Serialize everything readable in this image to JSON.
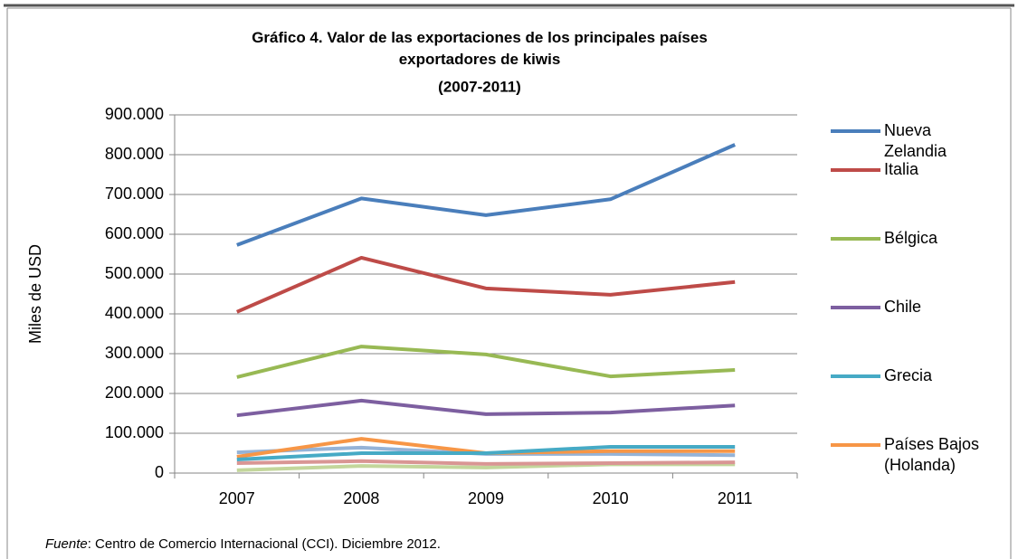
{
  "chart_data": {
    "type": "line",
    "title": "Gráfico 4. Valor de las exportaciones de los principales países exportadores de kiwis",
    "subtitle": "(2007-2011)",
    "y_label": "Miles de USD",
    "categories": [
      "2007",
      "2008",
      "2009",
      "2010",
      "2011"
    ],
    "series": [
      {
        "name": "Nueva Zelandia",
        "color": "#4a7ebb",
        "values": [
          573000,
          690000,
          648000,
          688000,
          825000
        ]
      },
      {
        "name": "Italia",
        "color": "#be4b48",
        "values": [
          405000,
          541000,
          464000,
          448000,
          480000
        ]
      },
      {
        "name": "Bélgica",
        "color": "#98b954",
        "values": [
          241000,
          318000,
          298000,
          243000,
          259000
        ]
      },
      {
        "name": "Chile",
        "color": "#7d5fa0",
        "values": [
          145000,
          182000,
          148000,
          152000,
          170000
        ]
      },
      {
        "name": "Grecia",
        "color": "#46aac5",
        "values": [
          34000,
          50000,
          50000,
          66000,
          66000
        ]
      },
      {
        "name": "Países Bajos (Holanda)",
        "color": "#f79646",
        "values": [
          41000,
          86000,
          50000,
          55000,
          55000
        ]
      },
      {
        "color": "#95b3d7",
        "values": [
          52000,
          64000,
          48000,
          48000,
          45000
        ]
      },
      {
        "color": "#d99694",
        "values": [
          25000,
          30000,
          23000,
          25000,
          27000
        ]
      },
      {
        "color": "#c3d69b",
        "values": [
          7000,
          18000,
          14000,
          22000,
          22000
        ]
      }
    ],
    "ylim": [
      0,
      900000
    ],
    "yticks": [
      0,
      {
        "value": 100000,
        "label": "100.000"
      },
      {
        "value": 200000,
        "label": "200.000"
      },
      {
        "value": 300000,
        "label": "300.000"
      },
      {
        "value": 400000,
        "label": "400.000"
      },
      {
        "value": 500000,
        "label": "500.000"
      },
      {
        "value": 600000,
        "label": "600.000"
      },
      {
        "value": 700000,
        "label": "700.000"
      },
      {
        "value": 800000,
        "label": "800.000"
      },
      {
        "value": 900000,
        "label": "900.000"
      }
    ],
    "grid": true,
    "legend": "right",
    "source_label": "Fuente",
    "source_text": ": Centro de Comercio Internacional (CCI). Diciembre 2012."
  }
}
